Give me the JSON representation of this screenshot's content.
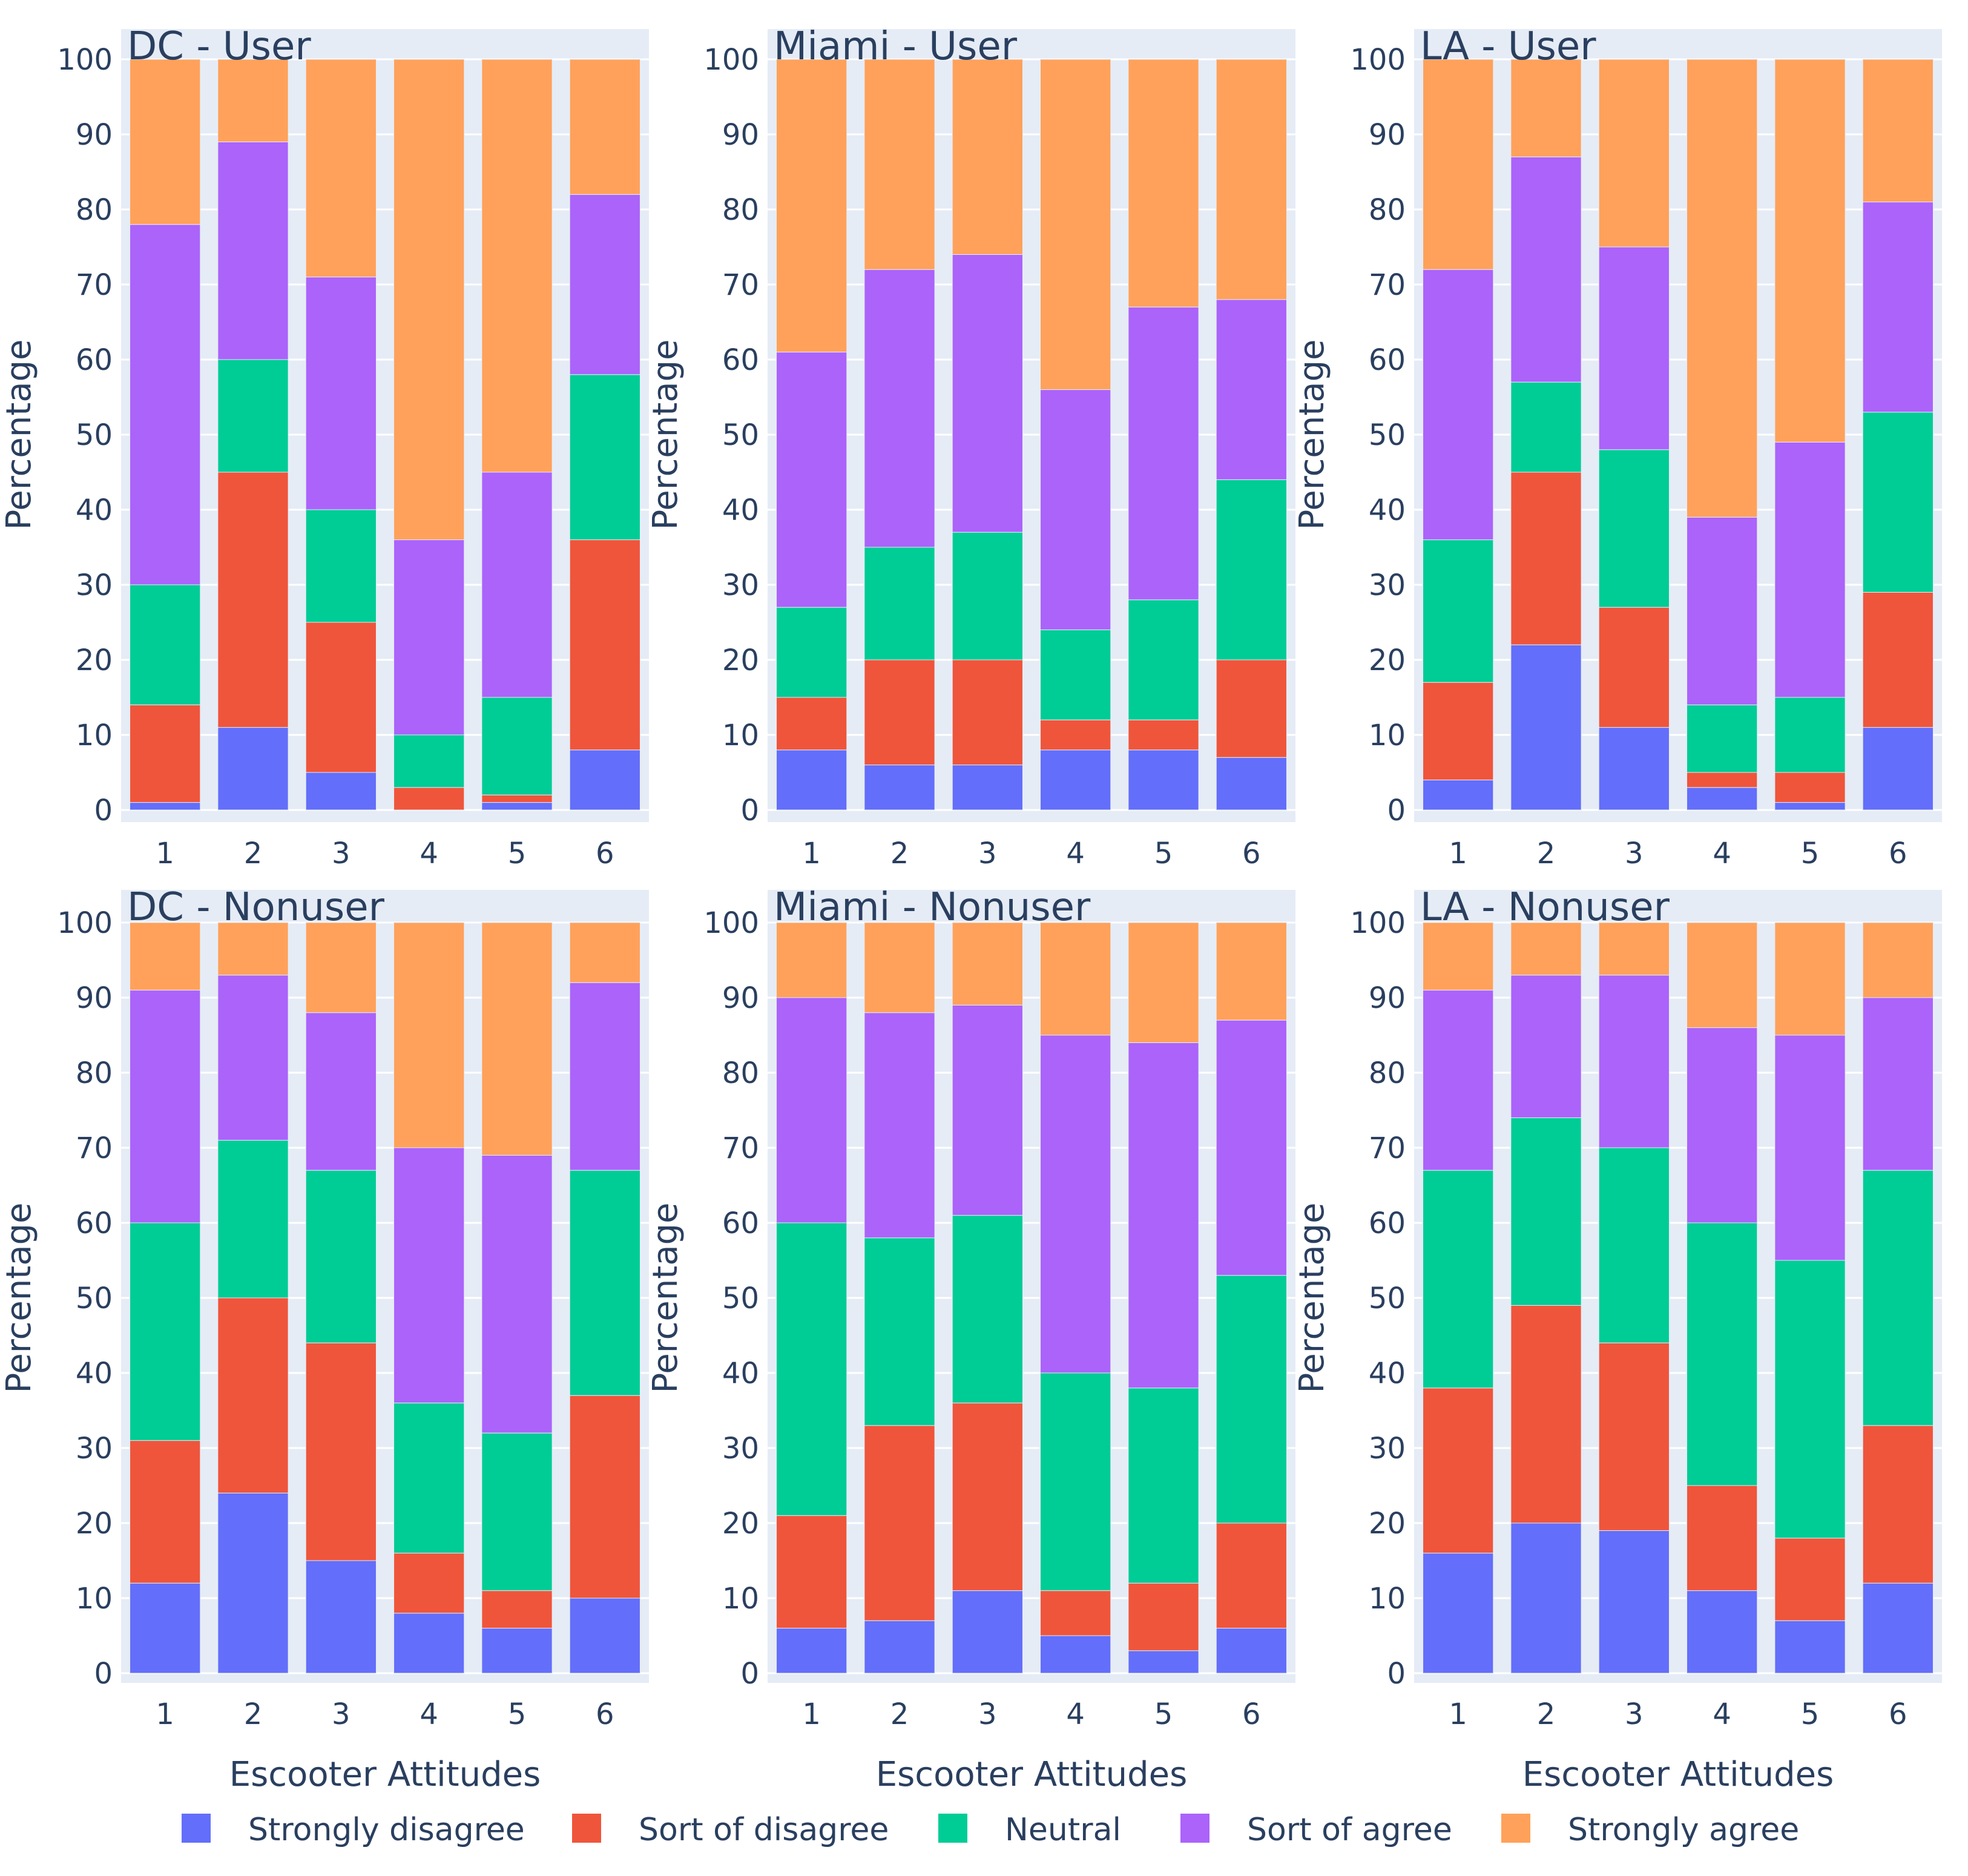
{
  "colors": {
    "Strongly disagree": "#636efa",
    "Sort of disagree": "#ef553b",
    "Neutral": "#00cc96",
    "Sort of agree": "#ab63fa",
    "Strongly agree": "#ffa15a"
  },
  "legend": {
    "labels": [
      "Strongly disagree",
      "Sort of disagree",
      "Neutral",
      "Sort of agree",
      "Strongly agree"
    ]
  },
  "chart_data": [
    {
      "type": "bar",
      "stacked": true,
      "title": "DC - User",
      "xlabel": "",
      "ylabel": "Percentage",
      "ylim": [
        0,
        100
      ],
      "yticks": [
        "0",
        "10",
        "20",
        "30",
        "40",
        "50",
        "60",
        "70",
        "80",
        "90",
        "100"
      ],
      "categories": [
        "1",
        "2",
        "3",
        "4",
        "5",
        "6"
      ],
      "series": [
        {
          "name": "Strongly disagree",
          "values": [
            1,
            11,
            5,
            0,
            1,
            8
          ]
        },
        {
          "name": "Sort of disagree",
          "values": [
            13,
            34,
            20,
            3,
            1,
            28
          ]
        },
        {
          "name": "Neutral",
          "values": [
            16,
            15,
            15,
            7,
            13,
            22
          ]
        },
        {
          "name": "Sort of agree",
          "values": [
            48,
            29,
            31,
            26,
            30,
            24
          ]
        },
        {
          "name": "Strongly agree",
          "values": [
            22,
            11,
            29,
            64,
            55,
            18
          ]
        }
      ]
    },
    {
      "type": "bar",
      "stacked": true,
      "title": "Miami - User",
      "xlabel": "",
      "ylabel": "Percentage",
      "ylim": [
        0,
        100
      ],
      "yticks": [
        "0",
        "10",
        "20",
        "30",
        "40",
        "50",
        "60",
        "70",
        "80",
        "90",
        "100"
      ],
      "categories": [
        "1",
        "2",
        "3",
        "4",
        "5",
        "6"
      ],
      "series": [
        {
          "name": "Strongly disagree",
          "values": [
            8,
            6,
            6,
            8,
            8,
            7
          ]
        },
        {
          "name": "Sort of disagree",
          "values": [
            7,
            14,
            14,
            4,
            4,
            13
          ]
        },
        {
          "name": "Neutral",
          "values": [
            12,
            15,
            17,
            12,
            16,
            24
          ]
        },
        {
          "name": "Sort of agree",
          "values": [
            34,
            37,
            37,
            32,
            39,
            24
          ]
        },
        {
          "name": "Strongly agree",
          "values": [
            39,
            28,
            26,
            44,
            33,
            32
          ]
        }
      ]
    },
    {
      "type": "bar",
      "stacked": true,
      "title": "LA - User",
      "xlabel": "",
      "ylabel": "Percentage",
      "ylim": [
        0,
        100
      ],
      "yticks": [
        "0",
        "10",
        "20",
        "30",
        "40",
        "50",
        "60",
        "70",
        "80",
        "90",
        "100"
      ],
      "categories": [
        "1",
        "2",
        "3",
        "4",
        "5",
        "6"
      ],
      "series": [
        {
          "name": "Strongly disagree",
          "values": [
            4,
            22,
            11,
            3,
            1,
            11
          ]
        },
        {
          "name": "Sort of disagree",
          "values": [
            13,
            23,
            16,
            2,
            4,
            18
          ]
        },
        {
          "name": "Neutral",
          "values": [
            19,
            12,
            21,
            9,
            10,
            24
          ]
        },
        {
          "name": "Sort of agree",
          "values": [
            36,
            30,
            27,
            25,
            34,
            28
          ]
        },
        {
          "name": "Strongly agree",
          "values": [
            28,
            13,
            25,
            61,
            51,
            19
          ]
        }
      ]
    },
    {
      "type": "bar",
      "stacked": true,
      "title": "DC - Nonuser",
      "xlabel": "Escooter Attitudes",
      "ylabel": "Percentage",
      "ylim": [
        0,
        100
      ],
      "yticks": [
        "0",
        "10",
        "20",
        "30",
        "40",
        "50",
        "60",
        "70",
        "80",
        "90",
        "100"
      ],
      "categories": [
        "1",
        "2",
        "3",
        "4",
        "5",
        "6"
      ],
      "series": [
        {
          "name": "Strongly disagree",
          "values": [
            12,
            24,
            15,
            8,
            6,
            10
          ]
        },
        {
          "name": "Sort of disagree",
          "values": [
            19,
            26,
            29,
            8,
            5,
            27
          ]
        },
        {
          "name": "Neutral",
          "values": [
            29,
            21,
            23,
            20,
            21,
            30
          ]
        },
        {
          "name": "Sort of agree",
          "values": [
            31,
            22,
            21,
            34,
            37,
            25
          ]
        },
        {
          "name": "Strongly agree",
          "values": [
            9,
            7,
            12,
            30,
            31,
            8
          ]
        }
      ]
    },
    {
      "type": "bar",
      "stacked": true,
      "title": "Miami - Nonuser",
      "xlabel": "Escooter Attitudes",
      "ylabel": "Percentage",
      "ylim": [
        0,
        100
      ],
      "yticks": [
        "0",
        "10",
        "20",
        "30",
        "40",
        "50",
        "60",
        "70",
        "80",
        "90",
        "100"
      ],
      "categories": [
        "1",
        "2",
        "3",
        "4",
        "5",
        "6"
      ],
      "series": [
        {
          "name": "Strongly disagree",
          "values": [
            6,
            7,
            11,
            5,
            3,
            6
          ]
        },
        {
          "name": "Sort of disagree",
          "values": [
            15,
            26,
            25,
            6,
            9,
            14
          ]
        },
        {
          "name": "Neutral",
          "values": [
            39,
            25,
            25,
            29,
            26,
            33
          ]
        },
        {
          "name": "Sort of agree",
          "values": [
            30,
            30,
            28,
            45,
            46,
            34
          ]
        },
        {
          "name": "Strongly agree",
          "values": [
            10,
            12,
            11,
            15,
            16,
            13
          ]
        }
      ]
    },
    {
      "type": "bar",
      "stacked": true,
      "title": "LA - Nonuser",
      "xlabel": "Escooter Attitudes",
      "ylabel": "Percentage",
      "ylim": [
        0,
        100
      ],
      "yticks": [
        "0",
        "10",
        "20",
        "30",
        "40",
        "50",
        "60",
        "70",
        "80",
        "90",
        "100"
      ],
      "categories": [
        "1",
        "2",
        "3",
        "4",
        "5",
        "6"
      ],
      "series": [
        {
          "name": "Strongly disagree",
          "values": [
            16,
            20,
            19,
            11,
            7,
            12
          ]
        },
        {
          "name": "Sort of disagree",
          "values": [
            22,
            29,
            25,
            14,
            11,
            21
          ]
        },
        {
          "name": "Neutral",
          "values": [
            29,
            25,
            26,
            35,
            37,
            34
          ]
        },
        {
          "name": "Sort of agree",
          "values": [
            24,
            19,
            23,
            26,
            30,
            23
          ]
        },
        {
          "name": "Strongly agree",
          "values": [
            9,
            7,
            7,
            14,
            15,
            10
          ]
        }
      ]
    }
  ]
}
